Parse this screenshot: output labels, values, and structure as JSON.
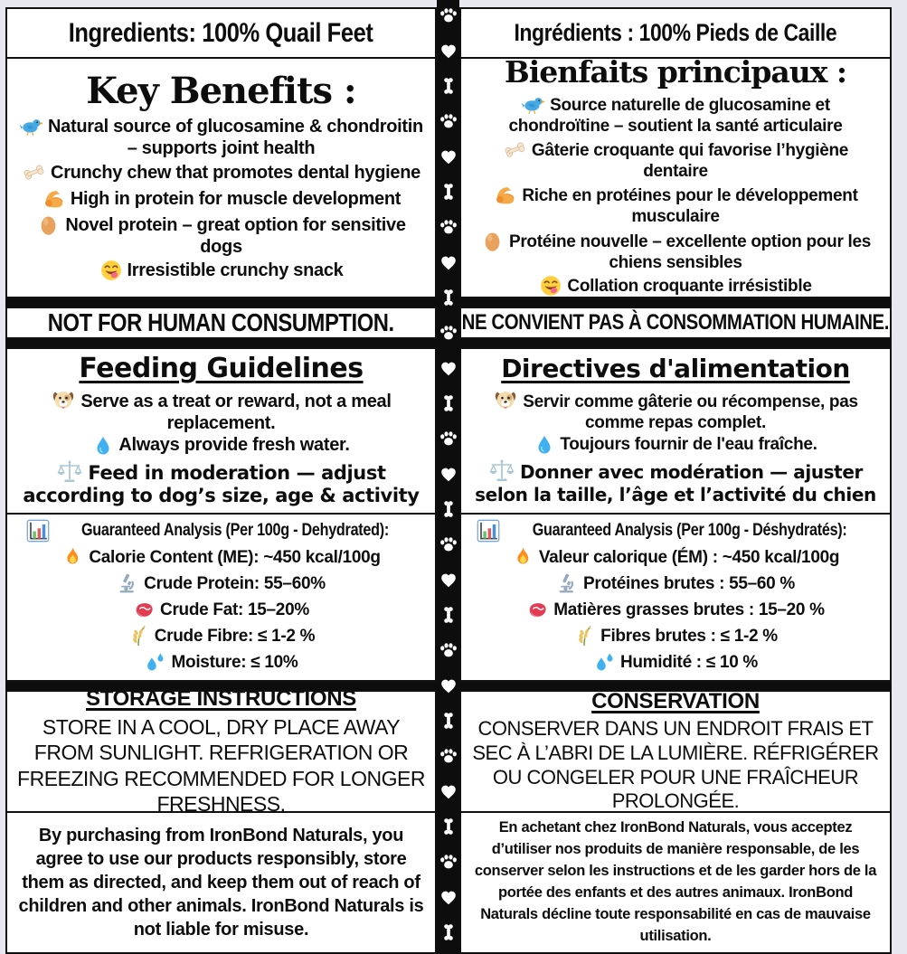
{
  "colors": {
    "ink": "#0d0d0d",
    "paper": "#ffffff",
    "margin_bg": "#e7e7f0",
    "divider_bg": "#0d0d0d"
  },
  "divider": {
    "pattern": [
      "paw",
      "pad",
      "bone"
    ],
    "repeats": 9
  },
  "left": {
    "ingredients_title": "Ingredients: 100% Quail Feet",
    "benefits": {
      "title": "Key Benefits :",
      "items": [
        {
          "icon": "bird-icon",
          "text": "Natural source of glucosamine & chondroitin – supports joint health"
        },
        {
          "icon": "bone-icon",
          "text": "Crunchy chew that promotes dental hygiene"
        },
        {
          "icon": "muscle-icon",
          "text": "High in protein for muscle development"
        },
        {
          "icon": "egg-icon",
          "text": "Novel protein – great option for sensitive dogs"
        },
        {
          "icon": "yum-face-icon",
          "text": "Irresistible crunchy snack"
        }
      ]
    },
    "warning": "NOT FOR HUMAN CONSUMPTION.",
    "feeding": {
      "title": "Feeding Guidelines",
      "items": [
        {
          "icon": "dog-face-icon",
          "text": "Serve as a treat or reward, not a meal replacement."
        },
        {
          "icon": "droplet-icon",
          "text": "Always provide fresh water."
        },
        {
          "icon": "scale-icon",
          "text": "Feed in moderation — adjust according to dog’s size, age & activity"
        }
      ]
    },
    "analysis": {
      "title_icon": "bar-chart-icon",
      "title": "Guaranteed Analysis (Per 100g - Dehydrated):",
      "items": [
        {
          "icon": "fire-icon",
          "text": "Calorie Content (ME): ~450 kcal/100g"
        },
        {
          "icon": "microscope-icon",
          "text": "Crude Protein: 55–60%"
        },
        {
          "icon": "steak-icon",
          "text": "Crude Fat: 15–20%"
        },
        {
          "icon": "wheat-icon",
          "text": "Crude Fibre: ≤ 1-2 %"
        },
        {
          "icon": "droplets-icon",
          "text": "Moisture: ≤ 10%"
        }
      ]
    },
    "storage": {
      "title": "STORAGE INSTRUCTIONS",
      "body": "STORE IN A COOL, DRY PLACE AWAY FROM SUNLIGHT. REFRIGERATION OR FREEZING RECOMMENDED FOR LONGER FRESHNESS."
    },
    "disclaimer": "By purchasing from IronBond Naturals, you agree to use our products responsibly, store them as directed, and keep them out of reach of children and other animals. IronBond Naturals is not liable for misuse."
  },
  "right": {
    "ingredients_title": "Ingrédients :  100% Pieds de Caille",
    "benefits": {
      "title": "Bienfaits principaux :",
      "items": [
        {
          "icon": "bird-icon",
          "text": "Source naturelle de glucosamine et chondroïtine – soutient la santé articulaire"
        },
        {
          "icon": "bone-icon",
          "text": "Gâterie croquante qui favorise l’hygiène dentaire"
        },
        {
          "icon": "muscle-icon",
          "text": "Riche en protéines pour le développement musculaire"
        },
        {
          "icon": "egg-icon",
          "text": "Protéine nouvelle – excellente option pour les chiens sensibles"
        },
        {
          "icon": "yum-face-icon",
          "text": "Collation croquante irrésistible"
        }
      ]
    },
    "warning": "NE CONVIENT PAS À CONSOMMATION HUMAINE.",
    "feeding": {
      "title": "Directives d'alimentation",
      "items": [
        {
          "icon": "dog-face-icon",
          "text": "Servir comme gâterie ou récompense, pas comme repas complet."
        },
        {
          "icon": "droplet-icon",
          "text": "Toujours fournir de l'eau fraîche."
        },
        {
          "icon": "scale-icon",
          "text": "Donner avec modération — ajuster selon la taille, l’âge et l’activité du chien"
        }
      ]
    },
    "analysis": {
      "title_icon": "bar-chart-icon",
      "title": "Guaranteed Analysis (Per 100g - Déshydratés):",
      "items": [
        {
          "icon": "fire-icon",
          "text": "Valeur calorique (ÉM) : ~450 kcal/100g"
        },
        {
          "icon": "microscope-icon",
          "text": "Protéines brutes : 55–60 %"
        },
        {
          "icon": "steak-icon",
          "text": "Matières grasses brutes : 15–20 %"
        },
        {
          "icon": "wheat-icon",
          "text": "Fibres brutes : ≤ 1-2 %"
        },
        {
          "icon": "droplets-icon",
          "text": "Humidité : ≤ 10 %"
        }
      ]
    },
    "storage": {
      "title": "CONSERVATION",
      "body": "CONSERVER DANS UN ENDROIT FRAIS ET SEC À L’ABRI DE LA LUMIÈRE. RÉFRIGÉRER OU CONGELER POUR UNE FRAÎCHEUR PROLONGÉE."
    },
    "disclaimer": "En achetant chez IronBond Naturals, vous acceptez d’utiliser nos produits de manière responsable, de les conserver selon les instructions et de les garder hors de la portée des enfants et des autres animaux. IronBond Naturals décline toute responsabilité en cas de mauvaise utilisation."
  }
}
